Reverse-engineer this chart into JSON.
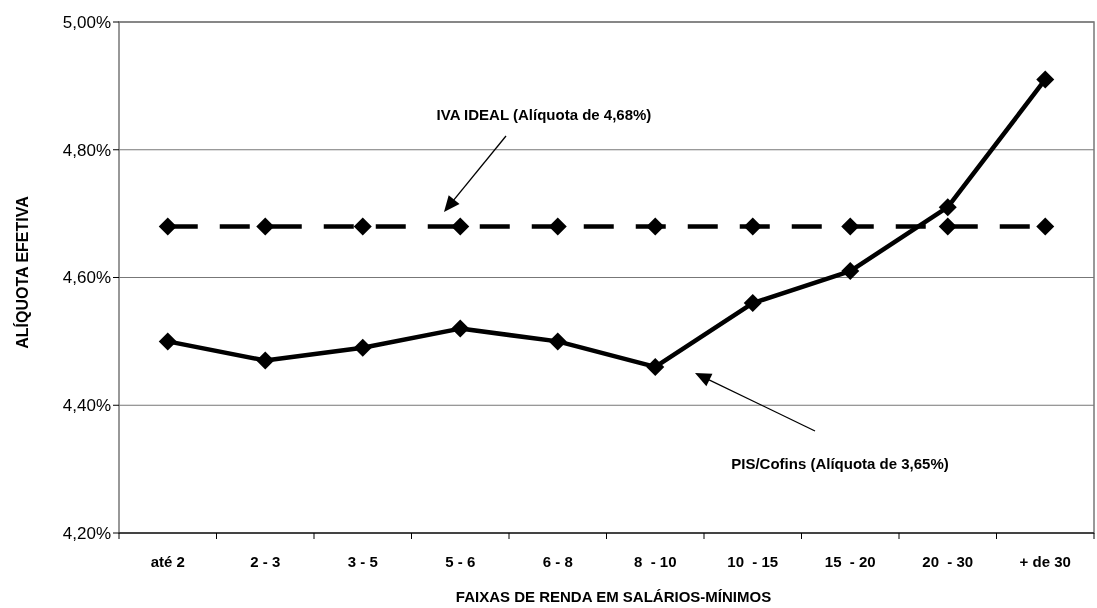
{
  "chart_data": {
    "type": "line",
    "xlabel": "FAIXAS DE RENDA EM SALÁRIOS-MÍNIMOS",
    "ylabel": "ALÍQUOTA EFETIVA",
    "categories": [
      "até 2",
      "2 - 3",
      "3 - 5",
      "5 - 6",
      "6 - 8",
      "8  - 10",
      "10  - 15",
      "15  - 20",
      "20  - 30",
      "+ de 30"
    ],
    "series": [
      {
        "color": "#000000",
        "line_style": "dashed",
        "values": [
          4.68,
          4.68,
          4.68,
          4.68,
          4.68,
          4.68,
          4.68,
          4.68,
          4.68,
          4.68
        ]
      },
      {
        "color": "#000000",
        "line_style": "solid",
        "values": [
          4.5,
          4.47,
          4.49,
          4.52,
          4.5,
          4.46,
          4.56,
          4.61,
          4.71,
          4.91
        ]
      }
    ],
    "ylim": [
      4.2,
      5.0
    ],
    "yticks": [
      {
        "value": 4.2,
        "label": "4,20%"
      },
      {
        "value": 4.4,
        "label": "4,40%"
      },
      {
        "value": 4.6,
        "label": "4,60%"
      },
      {
        "value": 4.8,
        "label": "4,80%"
      },
      {
        "value": 5.0,
        "label": "5,00%"
      }
    ],
    "grid": "y",
    "marker": "diamond",
    "annotations": [
      "IVA IDEAL (Alíquota de 4,68%)",
      "PIS/Cofins (Alíquota de 3,65%)"
    ]
  }
}
